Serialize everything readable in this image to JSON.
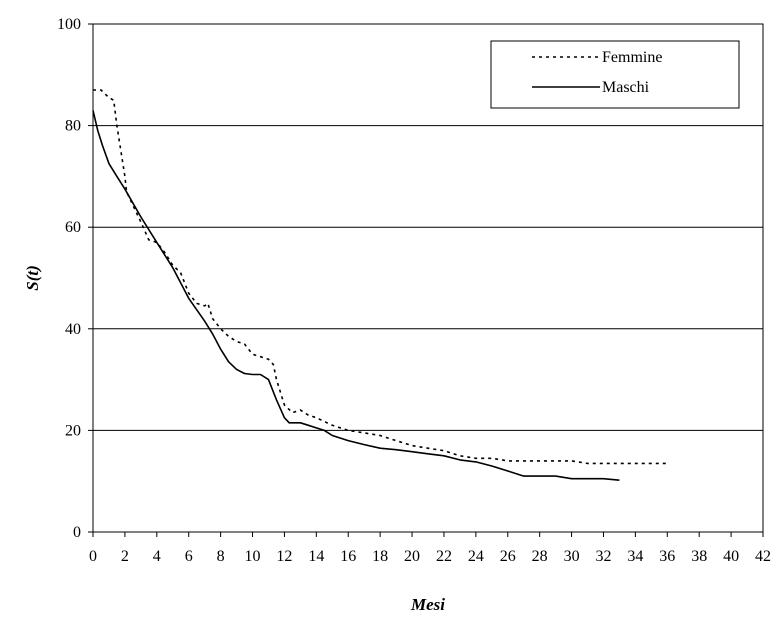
{
  "chart_data": {
    "type": "line",
    "xlabel": "Mesi",
    "ylabel": "S(t)",
    "xlim": [
      0,
      42
    ],
    "ylim": [
      0,
      100
    ],
    "x_ticks": [
      0,
      2,
      4,
      6,
      8,
      10,
      12,
      14,
      16,
      18,
      20,
      22,
      24,
      26,
      28,
      30,
      32,
      34,
      36,
      38,
      40,
      42
    ],
    "y_ticks": [
      0,
      20,
      40,
      60,
      80,
      100
    ],
    "grid": "horizontal",
    "legend_position": "top-right",
    "series": [
      {
        "name": "Femmine",
        "style": "dotted",
        "color": "#000000",
        "points": [
          [
            0,
            87
          ],
          [
            0.5,
            87
          ],
          [
            1,
            85.5
          ],
          [
            1.3,
            85
          ],
          [
            1.5,
            80
          ],
          [
            2,
            70
          ],
          [
            2.1,
            67
          ],
          [
            3,
            61
          ],
          [
            3.5,
            57.5
          ],
          [
            4,
            57
          ],
          [
            4.5,
            55
          ],
          [
            5,
            52.5
          ],
          [
            5.5,
            51
          ],
          [
            6,
            47
          ],
          [
            6.5,
            45
          ],
          [
            7,
            44.5
          ],
          [
            7.2,
            45
          ],
          [
            7.5,
            42
          ],
          [
            8,
            40
          ],
          [
            8.5,
            38.5
          ],
          [
            9,
            37.5
          ],
          [
            9.5,
            37
          ],
          [
            10,
            35
          ],
          [
            10.5,
            34.5
          ],
          [
            11,
            34
          ],
          [
            11.3,
            33
          ],
          [
            11.5,
            30
          ],
          [
            12,
            25
          ],
          [
            12.5,
            23.5
          ],
          [
            13,
            24
          ],
          [
            13.5,
            23
          ],
          [
            14,
            22.5
          ],
          [
            15,
            21
          ],
          [
            16,
            20
          ],
          [
            17,
            19.5
          ],
          [
            18,
            19
          ],
          [
            19,
            18
          ],
          [
            20,
            17
          ],
          [
            21,
            16.5
          ],
          [
            22,
            16
          ],
          [
            23,
            15
          ],
          [
            24,
            14.5
          ],
          [
            25,
            14.5
          ],
          [
            26,
            14
          ],
          [
            27,
            14
          ],
          [
            28,
            14
          ],
          [
            29,
            14
          ],
          [
            30,
            14
          ],
          [
            31,
            13.5
          ],
          [
            32,
            13.5
          ],
          [
            33,
            13.5
          ],
          [
            34,
            13.5
          ],
          [
            35,
            13.5
          ],
          [
            36,
            13.5
          ]
        ]
      },
      {
        "name": "Maschi",
        "style": "solid",
        "color": "#000000",
        "points": [
          [
            0,
            83
          ],
          [
            0.3,
            79
          ],
          [
            0.6,
            76
          ],
          [
            1,
            72.5
          ],
          [
            1.5,
            70
          ],
          [
            2,
            67.5
          ],
          [
            3,
            62
          ],
          [
            4,
            57
          ],
          [
            5,
            52
          ],
          [
            6,
            46
          ],
          [
            7,
            41.5
          ],
          [
            7.5,
            39
          ],
          [
            8,
            36
          ],
          [
            8.5,
            33.5
          ],
          [
            9,
            32
          ],
          [
            9.5,
            31.2
          ],
          [
            10,
            31
          ],
          [
            10.5,
            31
          ],
          [
            11,
            30
          ],
          [
            11.5,
            26
          ],
          [
            12,
            22.5
          ],
          [
            12.3,
            21.5
          ],
          [
            12.6,
            21.5
          ],
          [
            13,
            21.5
          ],
          [
            13.5,
            21
          ],
          [
            14,
            20.5
          ],
          [
            14.5,
            20
          ],
          [
            15,
            19
          ],
          [
            16,
            18
          ],
          [
            17,
            17.2
          ],
          [
            18,
            16.5
          ],
          [
            19,
            16.2
          ],
          [
            20,
            15.8
          ],
          [
            21,
            15.4
          ],
          [
            22,
            15
          ],
          [
            23,
            14.2
          ],
          [
            24,
            13.8
          ],
          [
            25,
            13
          ],
          [
            26,
            12
          ],
          [
            27,
            11
          ],
          [
            28,
            11
          ],
          [
            29,
            11
          ],
          [
            30,
            10.5
          ],
          [
            31,
            10.5
          ],
          [
            32,
            10.5
          ],
          [
            33,
            10.2
          ]
        ]
      }
    ]
  }
}
